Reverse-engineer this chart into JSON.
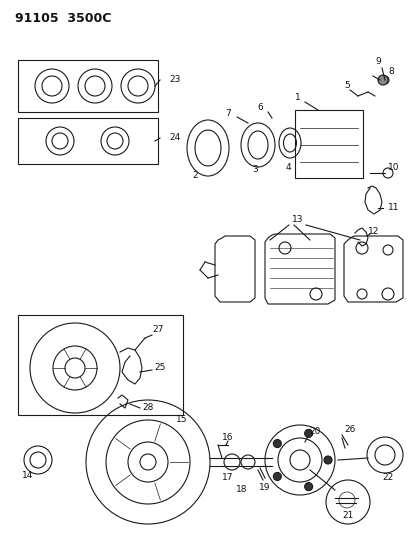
{
  "title": "91105  3500C",
  "bg_color": "#ffffff",
  "line_color": "#1a1a1a",
  "text_color": "#111111",
  "fig_width": 4.13,
  "fig_height": 5.33,
  "dpi": 100
}
